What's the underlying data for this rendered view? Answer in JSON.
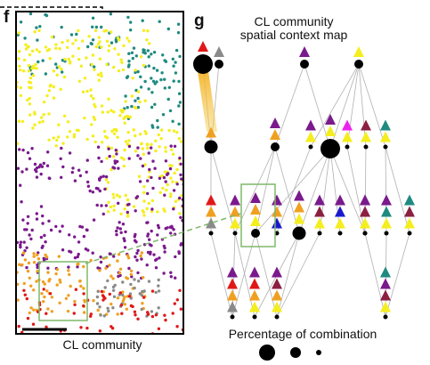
{
  "panels": {
    "f": {
      "letter": "f",
      "caption": "CL community"
    },
    "g": {
      "letter": "g",
      "title_line1": "CL community",
      "title_line2": "spatial context map",
      "legend_label": "Percentage of combination"
    }
  },
  "colors": {
    "teal": "#1f8a80",
    "yellow": "#f5ee1e",
    "purple": "#7a1a8c",
    "orange": "#f0a020",
    "red": "#e01818",
    "gray": "#8a8a8a",
    "maroon": "#8b2040",
    "blue": "#1a1acc",
    "magenta": "#ee22ee",
    "highlight_box": "#7fb86a",
    "edge": "#b0b0b0"
  },
  "context_map": {
    "nodes": [
      {
        "id": "L1a",
        "stack": [
          "red"
        ],
        "size": "large"
      },
      {
        "id": "L1b",
        "stack": [
          "gray"
        ],
        "size": "small"
      },
      {
        "id": "L1c",
        "stack": [
          "purple"
        ],
        "size": "small"
      },
      {
        "id": "L1d",
        "stack": [
          "yellow"
        ],
        "size": "small"
      },
      {
        "id": "L2a",
        "stack": [
          "orange"
        ],
        "size": "medium"
      },
      {
        "id": "L2b",
        "stack": [
          "purple",
          "orange"
        ],
        "size": "small"
      },
      {
        "id": "L2c",
        "stack": [
          "purple",
          "yellow"
        ],
        "size": "tiny"
      },
      {
        "id": "L2d",
        "stack": [
          "purple",
          "yellow"
        ],
        "size": "large"
      },
      {
        "id": "L2e",
        "stack": [
          "magenta",
          "yellow"
        ],
        "size": "tiny"
      },
      {
        "id": "L2f",
        "stack": [
          "maroon",
          "yellow"
        ],
        "size": "tiny"
      },
      {
        "id": "L2g",
        "stack": [
          "teal",
          "yellow"
        ],
        "size": "tiny"
      },
      {
        "id": "L3a",
        "stack": [
          "red",
          "orange",
          "gray"
        ],
        "size": "tiny"
      },
      {
        "id": "L3b",
        "stack": [
          "purple",
          "orange",
          "yellow"
        ],
        "size": "tiny"
      },
      {
        "id": "L3c",
        "stack": [
          "purple",
          "orange",
          "yellow"
        ],
        "size": "small"
      },
      {
        "id": "L3d",
        "stack": [
          "purple",
          "orange",
          "blue"
        ],
        "size": "tiny"
      },
      {
        "id": "L3e",
        "stack": [
          "purple",
          "orange",
          "yellow"
        ],
        "size": "medium"
      },
      {
        "id": "L3f",
        "stack": [
          "purple",
          "maroon",
          "yellow"
        ],
        "size": "tiny"
      },
      {
        "id": "L3g",
        "stack": [
          "purple",
          "blue",
          "yellow"
        ],
        "size": "tiny"
      },
      {
        "id": "L3h",
        "stack": [
          "purple",
          "magenta",
          "yellow"
        ],
        "size": "tiny"
      },
      {
        "id": "L3i",
        "stack": [
          "purple",
          "maroon",
          "yellow"
        ],
        "size": "tiny"
      },
      {
        "id": "L3j",
        "stack": [
          "purple",
          "teal",
          "yellow"
        ],
        "size": "tiny"
      },
      {
        "id": "L3k",
        "stack": [
          "teal",
          "maroon",
          "yellow"
        ],
        "size": "tiny"
      },
      {
        "id": "L4a",
        "stack": [
          "purple",
          "red",
          "orange",
          "gray"
        ],
        "size": "tiny"
      },
      {
        "id": "L4b",
        "stack": [
          "purple",
          "red",
          "orange",
          "yellow"
        ],
        "size": "tiny"
      },
      {
        "id": "L4c",
        "stack": [
          "purple",
          "maroon",
          "orange",
          "yellow"
        ],
        "size": "tiny"
      },
      {
        "id": "L4d",
        "stack": [
          "teal",
          "purple",
          "maroon",
          "yellow"
        ],
        "size": "tiny"
      }
    ]
  }
}
